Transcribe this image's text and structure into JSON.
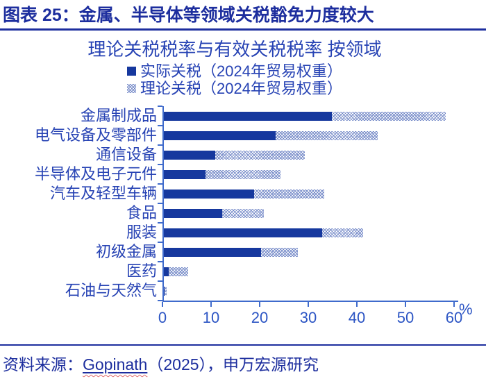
{
  "header": {
    "title": "图表 25：金属、半导体等领域关税豁免力度较大"
  },
  "chart": {
    "title": "理论关税税率与有效关税税率 按领域",
    "legend": [
      {
        "label": "实际关税（2024年贸易权重）",
        "swatch": "solid-square"
      },
      {
        "label": "理论关税（2024年贸易权重）",
        "swatch": "hatched-square"
      }
    ],
    "x_ticks": [
      "0",
      "10",
      "20",
      "30",
      "40",
      "50",
      "60"
    ],
    "unit_label": "%"
  },
  "chart_data": {
    "type": "bar",
    "orientation": "horizontal",
    "title": "理论关税税率与有效关税税率 按领域",
    "categories": [
      "金属制成品",
      "电气设备及零部件",
      "通信设备",
      "半导体及电子元件",
      "汽车及轻型车辆",
      "食品",
      "服装",
      "初级金属",
      "医药",
      "石油与天然气"
    ],
    "series": [
      {
        "name": "实际关税（2024年贸易权重）",
        "style": "solid",
        "values": [
          34.5,
          23,
          10.5,
          8.5,
          18.5,
          12,
          32.5,
          20,
          1,
          0.1
        ]
      },
      {
        "name": "理论关税（2024年贸易权重）",
        "style": "hatched",
        "values": [
          58,
          44,
          29,
          24,
          33,
          20.5,
          41,
          27.5,
          5,
          0.6
        ]
      }
    ],
    "xlim": [
      0,
      60
    ],
    "xlabel": "%",
    "grid": false,
    "legend_position": "top"
  },
  "footer": {
    "prefix": "资料来源：",
    "author": "Gopinath",
    "suffix": "（2025），申万宏源研究"
  },
  "colors": {
    "header_text": "#1D2E9E",
    "chart_text": "#2743B4",
    "axis_line": "#3F6BCC",
    "bar_actual": "#16389E",
    "bar_theoretical_hatch": "#8FA3DB",
    "spellcheck_underline": "#E06C6C"
  }
}
